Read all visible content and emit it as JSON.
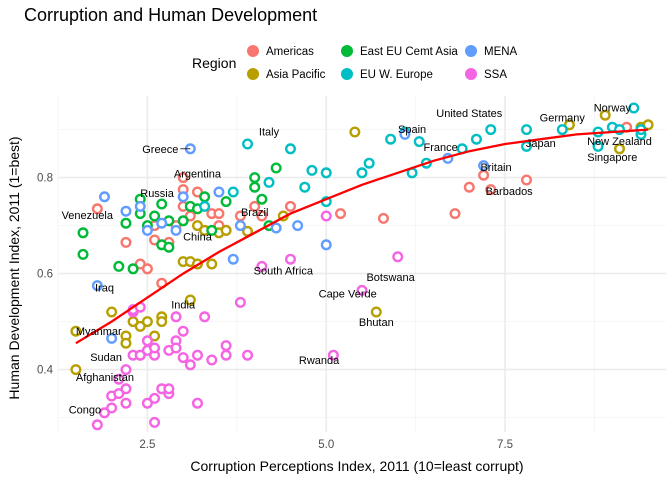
{
  "chart_data": {
    "type": "scatter",
    "title": "Corruption and Human Development",
    "xlabel": "Corruption Perceptions Index, 2011 (10=least corrupt)",
    "ylabel": "Human Development Index, 2011 (1=best)",
    "xlim": [
      1.25,
      9.75
    ],
    "ylim": [
      0.27,
      0.97
    ],
    "x_ticks": [
      2.5,
      5.0,
      7.5
    ],
    "x_tick_labels": [
      "2.5",
      "5.0",
      "7.5"
    ],
    "y_ticks": [
      0.4,
      0.6,
      0.8
    ],
    "y_tick_labels": [
      "0.4",
      "0.6",
      "0.8"
    ],
    "grid": true,
    "legend": {
      "title": "Region",
      "position": "top",
      "entries": [
        {
          "name": "Americas",
          "color": "#F8766D"
        },
        {
          "name": "Asia Pacific",
          "color": "#B79F00"
        },
        {
          "name": "East EU Cemt Asia",
          "color": "#00BA38"
        },
        {
          "name": "EU W. Europe",
          "color": "#00BFC4"
        },
        {
          "name": "MENA",
          "color": "#619CFF"
        },
        {
          "name": "SSA",
          "color": "#F564E3"
        }
      ]
    },
    "series": [
      {
        "name": "Americas",
        "color": "#F8766D",
        "points": [
          [
            1.8,
            0.735
          ],
          [
            2.2,
            0.665
          ],
          [
            2.4,
            0.62
          ],
          [
            2.5,
            0.61
          ],
          [
            2.6,
            0.7
          ],
          [
            2.6,
            0.67
          ],
          [
            2.7,
            0.58
          ],
          [
            2.8,
            0.665
          ],
          [
            2.9,
            0.7
          ],
          [
            3.0,
            0.775
          ],
          [
            3.0,
            0.8
          ],
          [
            3.0,
            0.74
          ],
          [
            3.1,
            0.72
          ],
          [
            3.2,
            0.77
          ],
          [
            3.3,
            0.69
          ],
          [
            3.4,
            0.725
          ],
          [
            3.5,
            0.725
          ],
          [
            3.5,
            0.7
          ],
          [
            3.6,
            0.69
          ],
          [
            3.8,
            0.72
          ],
          [
            4.0,
            0.74
          ],
          [
            4.1,
            0.72
          ],
          [
            4.5,
            0.74
          ],
          [
            5.2,
            0.725
          ],
          [
            5.8,
            0.715
          ],
          [
            6.8,
            0.725
          ],
          [
            7.0,
            0.78
          ],
          [
            7.2,
            0.805
          ],
          [
            7.3,
            0.775
          ],
          [
            7.8,
            0.795
          ],
          [
            9.2,
            0.905
          ]
        ]
      },
      {
        "name": "Asia Pacific",
        "color": "#B79F00",
        "points": [
          [
            1.5,
            0.4
          ],
          [
            1.5,
            0.48
          ],
          [
            2.0,
            0.52
          ],
          [
            2.2,
            0.47
          ],
          [
            2.2,
            0.455
          ],
          [
            2.3,
            0.5
          ],
          [
            2.4,
            0.49
          ],
          [
            2.5,
            0.5
          ],
          [
            2.6,
            0.47
          ],
          [
            2.7,
            0.51
          ],
          [
            2.7,
            0.5
          ],
          [
            3.0,
            0.625
          ],
          [
            3.1,
            0.545
          ],
          [
            3.1,
            0.625
          ],
          [
            3.2,
            0.62
          ],
          [
            3.2,
            0.7
          ],
          [
            3.3,
            0.69
          ],
          [
            3.4,
            0.62
          ],
          [
            3.5,
            0.685
          ],
          [
            3.6,
            0.69
          ],
          [
            3.9,
            0.688
          ],
          [
            4.4,
            0.72
          ],
          [
            5.4,
            0.895
          ],
          [
            5.7,
            0.52
          ],
          [
            8.4,
            0.91
          ],
          [
            8.9,
            0.93
          ],
          [
            9.1,
            0.86
          ],
          [
            9.4,
            0.905
          ],
          [
            9.5,
            0.91
          ]
        ]
      },
      {
        "name": "East EU Cemt Asia",
        "color": "#00BA38",
        "points": [
          [
            1.6,
            0.685
          ],
          [
            1.6,
            0.64
          ],
          [
            2.1,
            0.615
          ],
          [
            2.2,
            0.705
          ],
          [
            2.3,
            0.61
          ],
          [
            2.4,
            0.725
          ],
          [
            2.4,
            0.755
          ],
          [
            2.5,
            0.7
          ],
          [
            2.6,
            0.72
          ],
          [
            2.7,
            0.745
          ],
          [
            2.7,
            0.66
          ],
          [
            2.8,
            0.71
          ],
          [
            2.8,
            0.655
          ],
          [
            3.0,
            0.71
          ],
          [
            3.1,
            0.74
          ],
          [
            3.2,
            0.735
          ],
          [
            3.3,
            0.76
          ],
          [
            3.4,
            0.69
          ],
          [
            3.6,
            0.75
          ],
          [
            4.0,
            0.8
          ],
          [
            4.0,
            0.78
          ],
          [
            4.1,
            0.755
          ],
          [
            4.2,
            0.7
          ],
          [
            4.3,
            0.82
          ]
        ]
      },
      {
        "name": "EU W. Europe",
        "color": "#00BFC4",
        "points": [
          [
            3.3,
            0.74
          ],
          [
            3.7,
            0.77
          ],
          [
            3.9,
            0.87
          ],
          [
            4.2,
            0.79
          ],
          [
            4.5,
            0.86
          ],
          [
            4.7,
            0.78
          ],
          [
            4.8,
            0.815
          ],
          [
            5.0,
            0.81
          ],
          [
            5.0,
            0.75
          ],
          [
            5.5,
            0.81
          ],
          [
            5.6,
            0.83
          ],
          [
            5.9,
            0.88
          ],
          [
            6.1,
            0.895
          ],
          [
            6.2,
            0.81
          ],
          [
            6.3,
            0.875
          ],
          [
            6.4,
            0.83
          ],
          [
            6.9,
            0.86
          ],
          [
            7.1,
            0.88
          ],
          [
            7.3,
            0.9
          ],
          [
            7.8,
            0.9
          ],
          [
            7.8,
            0.865
          ],
          [
            8.3,
            0.9
          ],
          [
            8.8,
            0.895
          ],
          [
            8.8,
            0.865
          ],
          [
            9.0,
            0.905
          ],
          [
            9.1,
            0.9
          ],
          [
            9.3,
            0.945
          ],
          [
            9.4,
            0.89
          ],
          [
            9.4,
            0.9
          ]
        ]
      },
      {
        "name": "MENA",
        "color": "#619CFF",
        "points": [
          [
            1.8,
            0.575
          ],
          [
            1.9,
            0.76
          ],
          [
            2.0,
            0.465
          ],
          [
            2.2,
            0.73
          ],
          [
            2.4,
            0.74
          ],
          [
            2.5,
            0.69
          ],
          [
            2.7,
            0.705
          ],
          [
            2.9,
            0.69
          ],
          [
            3.0,
            0.76
          ],
          [
            3.1,
            0.86
          ],
          [
            3.5,
            0.77
          ],
          [
            3.7,
            0.63
          ],
          [
            3.8,
            0.7
          ],
          [
            4.3,
            0.695
          ],
          [
            4.6,
            0.7
          ],
          [
            5.0,
            0.66
          ],
          [
            6.1,
            0.89
          ],
          [
            6.7,
            0.84
          ],
          [
            7.2,
            0.825
          ]
        ]
      },
      {
        "name": "SSA",
        "color": "#F564E3",
        "points": [
          [
            1.8,
            0.285
          ],
          [
            1.9,
            0.31
          ],
          [
            2.0,
            0.32
          ],
          [
            2.0,
            0.345
          ],
          [
            2.1,
            0.38
          ],
          [
            2.1,
            0.35
          ],
          [
            2.2,
            0.4
          ],
          [
            2.2,
            0.33
          ],
          [
            2.2,
            0.36
          ],
          [
            2.3,
            0.43
          ],
          [
            2.3,
            0.52
          ],
          [
            2.3,
            0.525
          ],
          [
            2.4,
            0.53
          ],
          [
            2.4,
            0.43
          ],
          [
            2.4,
            0.43
          ],
          [
            2.5,
            0.46
          ],
          [
            2.5,
            0.44
          ],
          [
            2.5,
            0.33
          ],
          [
            2.6,
            0.29
          ],
          [
            2.6,
            0.34
          ],
          [
            2.6,
            0.43
          ],
          [
            2.6,
            0.445
          ],
          [
            2.7,
            0.36
          ],
          [
            2.8,
            0.35
          ],
          [
            2.8,
            0.36
          ],
          [
            2.8,
            0.44
          ],
          [
            2.9,
            0.46
          ],
          [
            2.9,
            0.445
          ],
          [
            2.9,
            0.51
          ],
          [
            3.0,
            0.48
          ],
          [
            3.0,
            0.425
          ],
          [
            3.1,
            0.41
          ],
          [
            3.2,
            0.33
          ],
          [
            3.2,
            0.43
          ],
          [
            3.3,
            0.51
          ],
          [
            3.4,
            0.42
          ],
          [
            3.6,
            0.45
          ],
          [
            3.6,
            0.43
          ],
          [
            3.8,
            0.54
          ],
          [
            3.9,
            0.43
          ],
          [
            4.1,
            0.615
          ],
          [
            4.5,
            0.63
          ],
          [
            5.0,
            0.72
          ],
          [
            5.1,
            0.43
          ],
          [
            5.5,
            0.565
          ],
          [
            6.0,
            0.635
          ]
        ]
      }
    ],
    "trend_line": {
      "color": "#FF0000",
      "points": [
        [
          1.5,
          0.455
        ],
        [
          2.0,
          0.5
        ],
        [
          2.5,
          0.55
        ],
        [
          3.0,
          0.6
        ],
        [
          3.5,
          0.645
        ],
        [
          4.0,
          0.685
        ],
        [
          4.5,
          0.725
        ],
        [
          5.0,
          0.755
        ],
        [
          5.5,
          0.785
        ],
        [
          6.0,
          0.81
        ],
        [
          6.5,
          0.835
        ],
        [
          7.0,
          0.855
        ],
        [
          7.5,
          0.87
        ],
        [
          8.0,
          0.88
        ],
        [
          8.5,
          0.89
        ],
        [
          9.0,
          0.895
        ],
        [
          9.5,
          0.9
        ]
      ]
    },
    "annotations": [
      {
        "text": "Norway",
        "x": 9.0,
        "y": 0.925,
        "anchor": "middle",
        "dy": -6
      },
      {
        "text": "United States",
        "x": 7.0,
        "y": 0.905,
        "anchor": "middle",
        "dy": -10
      },
      {
        "text": "Germany",
        "x": 8.3,
        "y": 0.9,
        "anchor": "middle",
        "dy": -8
      },
      {
        "text": "Spain",
        "x": 6.2,
        "y": 0.885,
        "anchor": "middle",
        "dy": -4
      },
      {
        "text": "Italy",
        "x": 4.2,
        "y": 0.875,
        "anchor": "middle",
        "dy": -6
      },
      {
        "text": "Japan",
        "x": 8.0,
        "y": 0.88,
        "anchor": "middle",
        "dy": 8
      },
      {
        "text": "New Zealand",
        "x": 9.1,
        "y": 0.885,
        "anchor": "middle",
        "dy": 8
      },
      {
        "text": "Greece",
        "x": 3.1,
        "y": 0.86,
        "anchor": "end",
        "dy": 4,
        "dx": -12,
        "leader": true
      },
      {
        "text": "France",
        "x": 6.6,
        "y": 0.855,
        "anchor": "middle",
        "dy": 0
      },
      {
        "text": "Britain",
        "x": 7.1,
        "y": 0.83,
        "anchor": "start",
        "dy": 8,
        "dx": 4
      },
      {
        "text": "Singapore",
        "x": 9.0,
        "y": 0.855,
        "anchor": "middle",
        "dy": 10
      },
      {
        "text": "Argentina",
        "x": 3.2,
        "y": 0.8,
        "anchor": "middle",
        "dy": 0
      },
      {
        "text": "Russia",
        "x": 2.4,
        "y": 0.755,
        "anchor": "start",
        "dy": -2
      },
      {
        "text": "Barbados",
        "x": 7.2,
        "y": 0.78,
        "anchor": "start",
        "dy": 8,
        "dx": 2
      },
      {
        "text": "Brazil",
        "x": 4.0,
        "y": 0.72,
        "anchor": "middle",
        "dy": 0
      },
      {
        "text": "Venezuela",
        "x": 1.3,
        "y": 0.71,
        "anchor": "start",
        "dy": -2
      },
      {
        "text": "China",
        "x": 3.2,
        "y": 0.69,
        "anchor": "middle",
        "dy": 10
      },
      {
        "text": "South Africa",
        "x": 4.4,
        "y": 0.615,
        "anchor": "middle",
        "dy": 8
      },
      {
        "text": "Botswana",
        "x": 5.9,
        "y": 0.61,
        "anchor": "middle",
        "dy": 12
      },
      {
        "text": "Iraq",
        "x": 1.9,
        "y": 0.575,
        "anchor": "middle",
        "dy": 6
      },
      {
        "text": "Cape Verde",
        "x": 5.3,
        "y": 0.55,
        "anchor": "middle",
        "dy": 0
      },
      {
        "text": "India",
        "x": 3.0,
        "y": 0.54,
        "anchor": "middle",
        "dy": 6
      },
      {
        "text": "Myanmar",
        "x": 1.5,
        "y": 0.48,
        "anchor": "start",
        "dy": 4
      },
      {
        "text": "Bhutan",
        "x": 5.7,
        "y": 0.52,
        "anchor": "middle",
        "dy": 14
      },
      {
        "text": "Sudan",
        "x": 1.7,
        "y": 0.41,
        "anchor": "start",
        "dy": -4
      },
      {
        "text": "Rwanda",
        "x": 4.9,
        "y": 0.42,
        "anchor": "middle",
        "dy": 4
      },
      {
        "text": "Afghanistan",
        "x": 1.5,
        "y": 0.38,
        "anchor": "start",
        "dy": 2
      },
      {
        "text": "Congo",
        "x": 1.4,
        "y": 0.3,
        "anchor": "start",
        "dy": -4
      }
    ]
  }
}
